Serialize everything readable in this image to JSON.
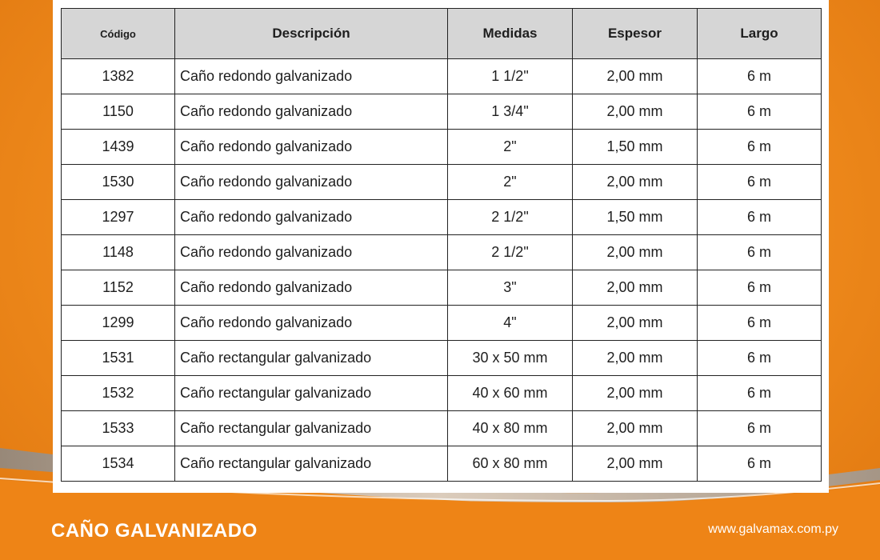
{
  "colors": {
    "background": "#f08a1c",
    "header_bg": "#d6d6d6",
    "text": "#1e1e1e",
    "footer_text": "#ffffff"
  },
  "table": {
    "headers": [
      "Código",
      "Descripción",
      "Medidas",
      "Espesor",
      "Largo"
    ],
    "rows": [
      [
        "1382",
        "Caño redondo galvanizado",
        "1 1/2\"",
        "2,00 mm",
        "6 m"
      ],
      [
        "1150",
        "Caño redondo galvanizado",
        "1 3/4\"",
        "2,00 mm",
        "6 m"
      ],
      [
        "1439",
        "Caño redondo galvanizado",
        "2\"",
        "1,50 mm",
        "6 m"
      ],
      [
        "1530",
        "Caño redondo galvanizado",
        "2\"",
        "2,00 mm",
        "6 m"
      ],
      [
        "1297",
        "Caño redondo galvanizado",
        "2 1/2\"",
        "1,50 mm",
        "6 m"
      ],
      [
        "1148",
        "Caño redondo galvanizado",
        "2 1/2\"",
        "2,00 mm",
        "6 m"
      ],
      [
        "1152",
        "Caño redondo galvanizado",
        "3\"",
        "2,00 mm",
        "6 m"
      ],
      [
        "1299",
        "Caño redondo galvanizado",
        "4\"",
        "2,00 mm",
        "6 m"
      ],
      [
        "1531",
        "Caño rectangular galvanizado",
        "30 x 50 mm",
        "2,00 mm",
        "6 m"
      ],
      [
        "1532",
        "Caño rectangular galvanizado",
        "40 x 60 mm",
        "2,00 mm",
        "6 m"
      ],
      [
        "1533",
        "Caño rectangular galvanizado",
        "40 x 80 mm",
        "2,00 mm",
        "6 m"
      ],
      [
        "1534",
        "Caño rectangular galvanizado",
        "60 x 80 mm",
        "2,00 mm",
        "6 m"
      ]
    ]
  },
  "footer": {
    "title": "CAÑO GALVANIZADO",
    "url": "www.galvamax.com.py"
  }
}
